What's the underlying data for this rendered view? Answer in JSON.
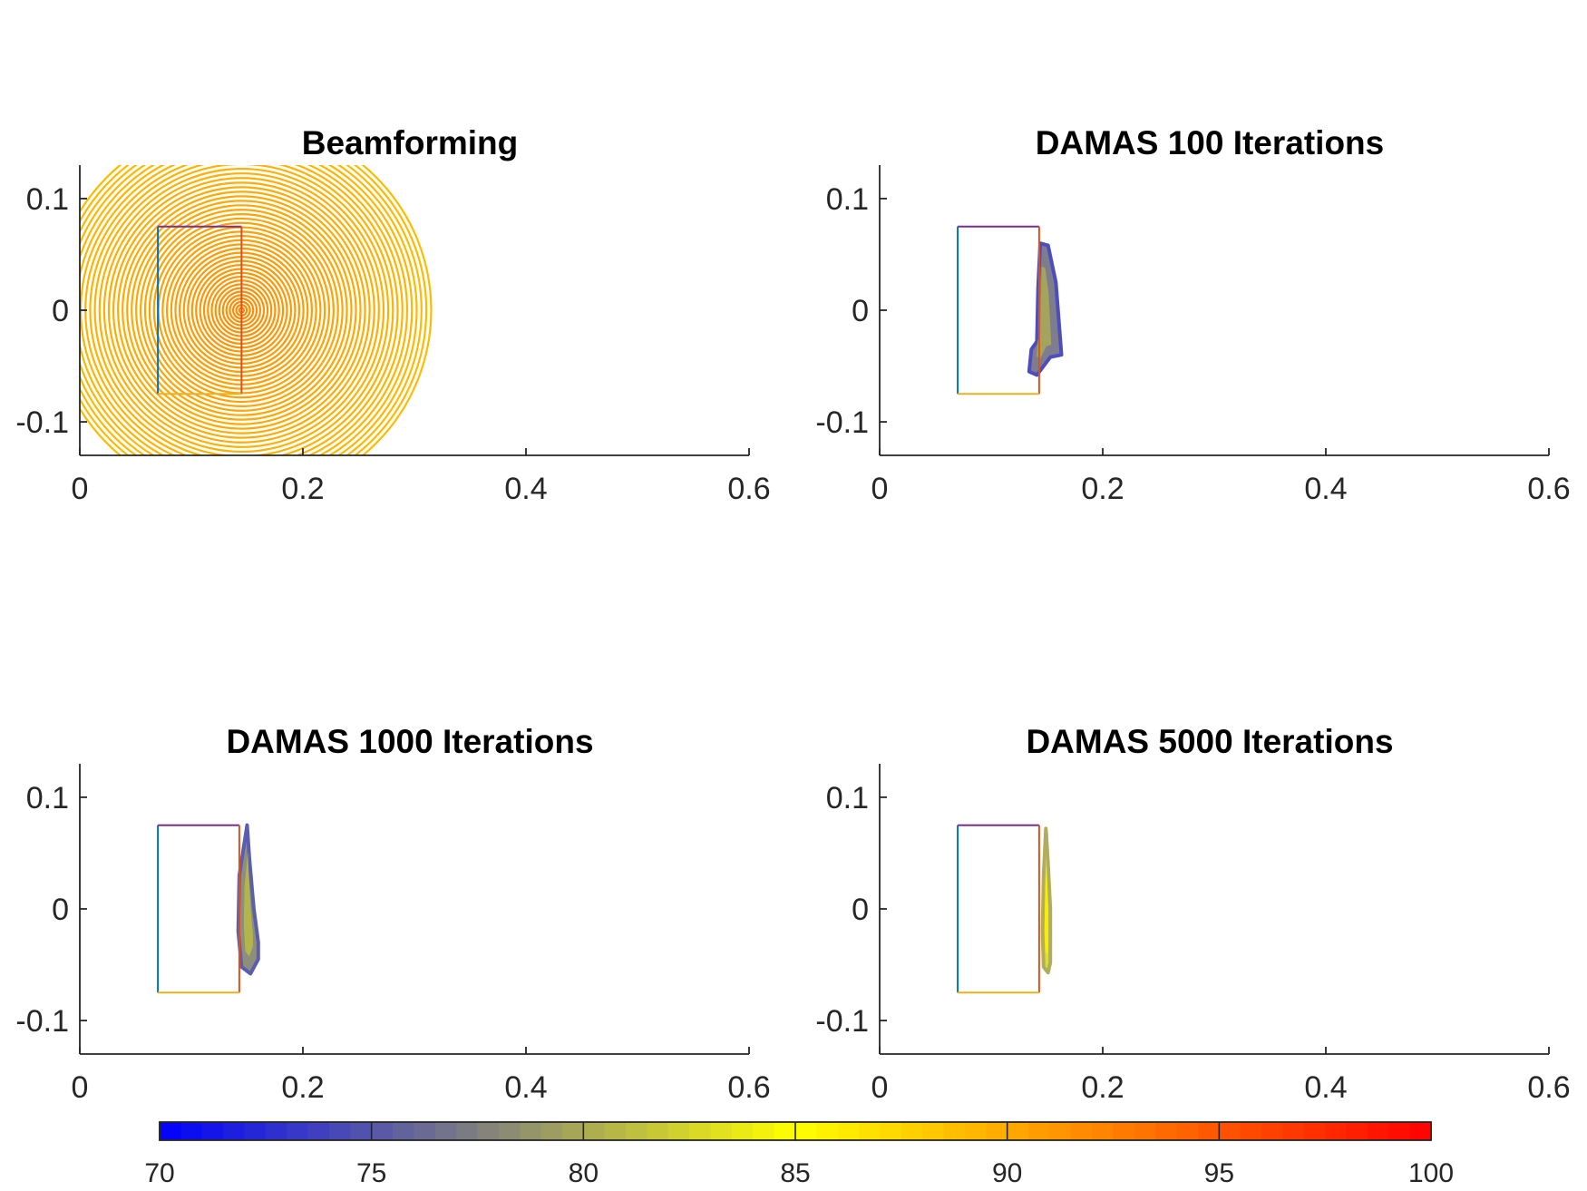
{
  "chart_data": [
    {
      "type": "contour",
      "title": "Beamforming",
      "xlim": [
        0,
        0.6
      ],
      "ylim": [
        -0.13,
        0.13
      ],
      "xticks": [
        0,
        0.2,
        0.4,
        0.6
      ],
      "xtick_labels": [
        "0",
        "0.2",
        "0.4",
        "0.6"
      ],
      "yticks": [
        0.1,
        0,
        -0.1
      ],
      "ytick_labels": [
        "0.1",
        "0",
        "-0.1"
      ],
      "source": {
        "x": 0.145,
        "y": 0.0
      },
      "contour_levels": {
        "count": 45,
        "max_radius": 0.17,
        "min_level": 89,
        "max_level": 92
      },
      "box": {
        "x0": 0.07,
        "x1": 0.145,
        "y0": -0.075,
        "y1": 0.075
      }
    },
    {
      "type": "contour",
      "title": "DAMAS  100 Iterations",
      "xlim": [
        0,
        0.6
      ],
      "ylim": [
        -0.13,
        0.13
      ],
      "xticks": [
        0,
        0.2,
        0.4,
        0.6
      ],
      "xtick_labels": [
        "0",
        "0.2",
        "0.4",
        "0.6"
      ],
      "yticks": [
        0.1,
        0,
        -0.1
      ],
      "ytick_labels": [
        "0.1",
        "0",
        "-0.1"
      ],
      "blob": [
        [
          0.144,
          0.06
        ],
        [
          0.151,
          0.058
        ],
        [
          0.158,
          0.025
        ],
        [
          0.163,
          -0.04
        ],
        [
          0.153,
          -0.042
        ],
        [
          0.141,
          -0.058
        ],
        [
          0.134,
          -0.055
        ],
        [
          0.136,
          -0.035
        ],
        [
          0.141,
          -0.028
        ],
        [
          0.142,
          0.02
        ]
      ],
      "blob_level": 75,
      "box": {
        "x0": 0.07,
        "x1": 0.143,
        "y0": -0.075,
        "y1": 0.075
      }
    },
    {
      "type": "contour",
      "title": "DAMAS  1000 Iterations",
      "xlim": [
        0,
        0.6
      ],
      "ylim": [
        -0.13,
        0.13
      ],
      "xticks": [
        0,
        0.2,
        0.4,
        0.6
      ],
      "xtick_labels": [
        "0",
        "0.2",
        "0.4",
        "0.6"
      ],
      "yticks": [
        0.1,
        0,
        -0.1
      ],
      "ytick_labels": [
        "0.1",
        "0",
        "-0.1"
      ],
      "blob": [
        [
          0.15,
          0.075
        ],
        [
          0.152,
          0.045
        ],
        [
          0.156,
          0.0
        ],
        [
          0.16,
          -0.03
        ],
        [
          0.16,
          -0.045
        ],
        [
          0.153,
          -0.058
        ],
        [
          0.145,
          -0.052
        ],
        [
          0.142,
          -0.02
        ],
        [
          0.143,
          0.03
        ]
      ],
      "blob_level": 76,
      "box": {
        "x0": 0.07,
        "x1": 0.143,
        "y0": -0.075,
        "y1": 0.075
      }
    },
    {
      "type": "contour",
      "title": "DAMAS  5000 Iterations",
      "xlim": [
        0,
        0.6
      ],
      "ylim": [
        -0.13,
        0.13
      ],
      "xticks": [
        0,
        0.2,
        0.4,
        0.6
      ],
      "xtick_labels": [
        "0",
        "0.2",
        "0.4",
        "0.6"
      ],
      "yticks": [
        0.1,
        0,
        -0.1
      ],
      "ytick_labels": [
        "0.1",
        "0",
        "-0.1"
      ],
      "blob": [
        [
          0.149,
          0.072
        ],
        [
          0.151,
          0.04
        ],
        [
          0.153,
          0.0
        ],
        [
          0.153,
          -0.048
        ],
        [
          0.151,
          -0.057
        ],
        [
          0.147,
          -0.052
        ],
        [
          0.146,
          -0.02
        ],
        [
          0.147,
          0.03
        ]
      ],
      "blob_level": 81,
      "box": {
        "x0": 0.07,
        "x1": 0.143,
        "y0": -0.075,
        "y1": 0.075
      }
    }
  ],
  "colorbar": {
    "min": 70,
    "max": 100,
    "steps": 60,
    "ticks": [
      70,
      75,
      80,
      85,
      90,
      95,
      100
    ],
    "tick_labels": [
      "70",
      "75",
      "80",
      "85",
      "90",
      "95",
      "100"
    ],
    "stops": [
      {
        "value": 70,
        "color": "#0000ff"
      },
      {
        "value": 85,
        "color": "#ffff00"
      },
      {
        "value": 100,
        "color": "#ff0000"
      }
    ]
  },
  "colors": {
    "box_left": "#0072bd",
    "box_top": "#7e2f8e",
    "box_right": "#d95319",
    "box_bottom": "#edb120",
    "axis": "#262626"
  }
}
